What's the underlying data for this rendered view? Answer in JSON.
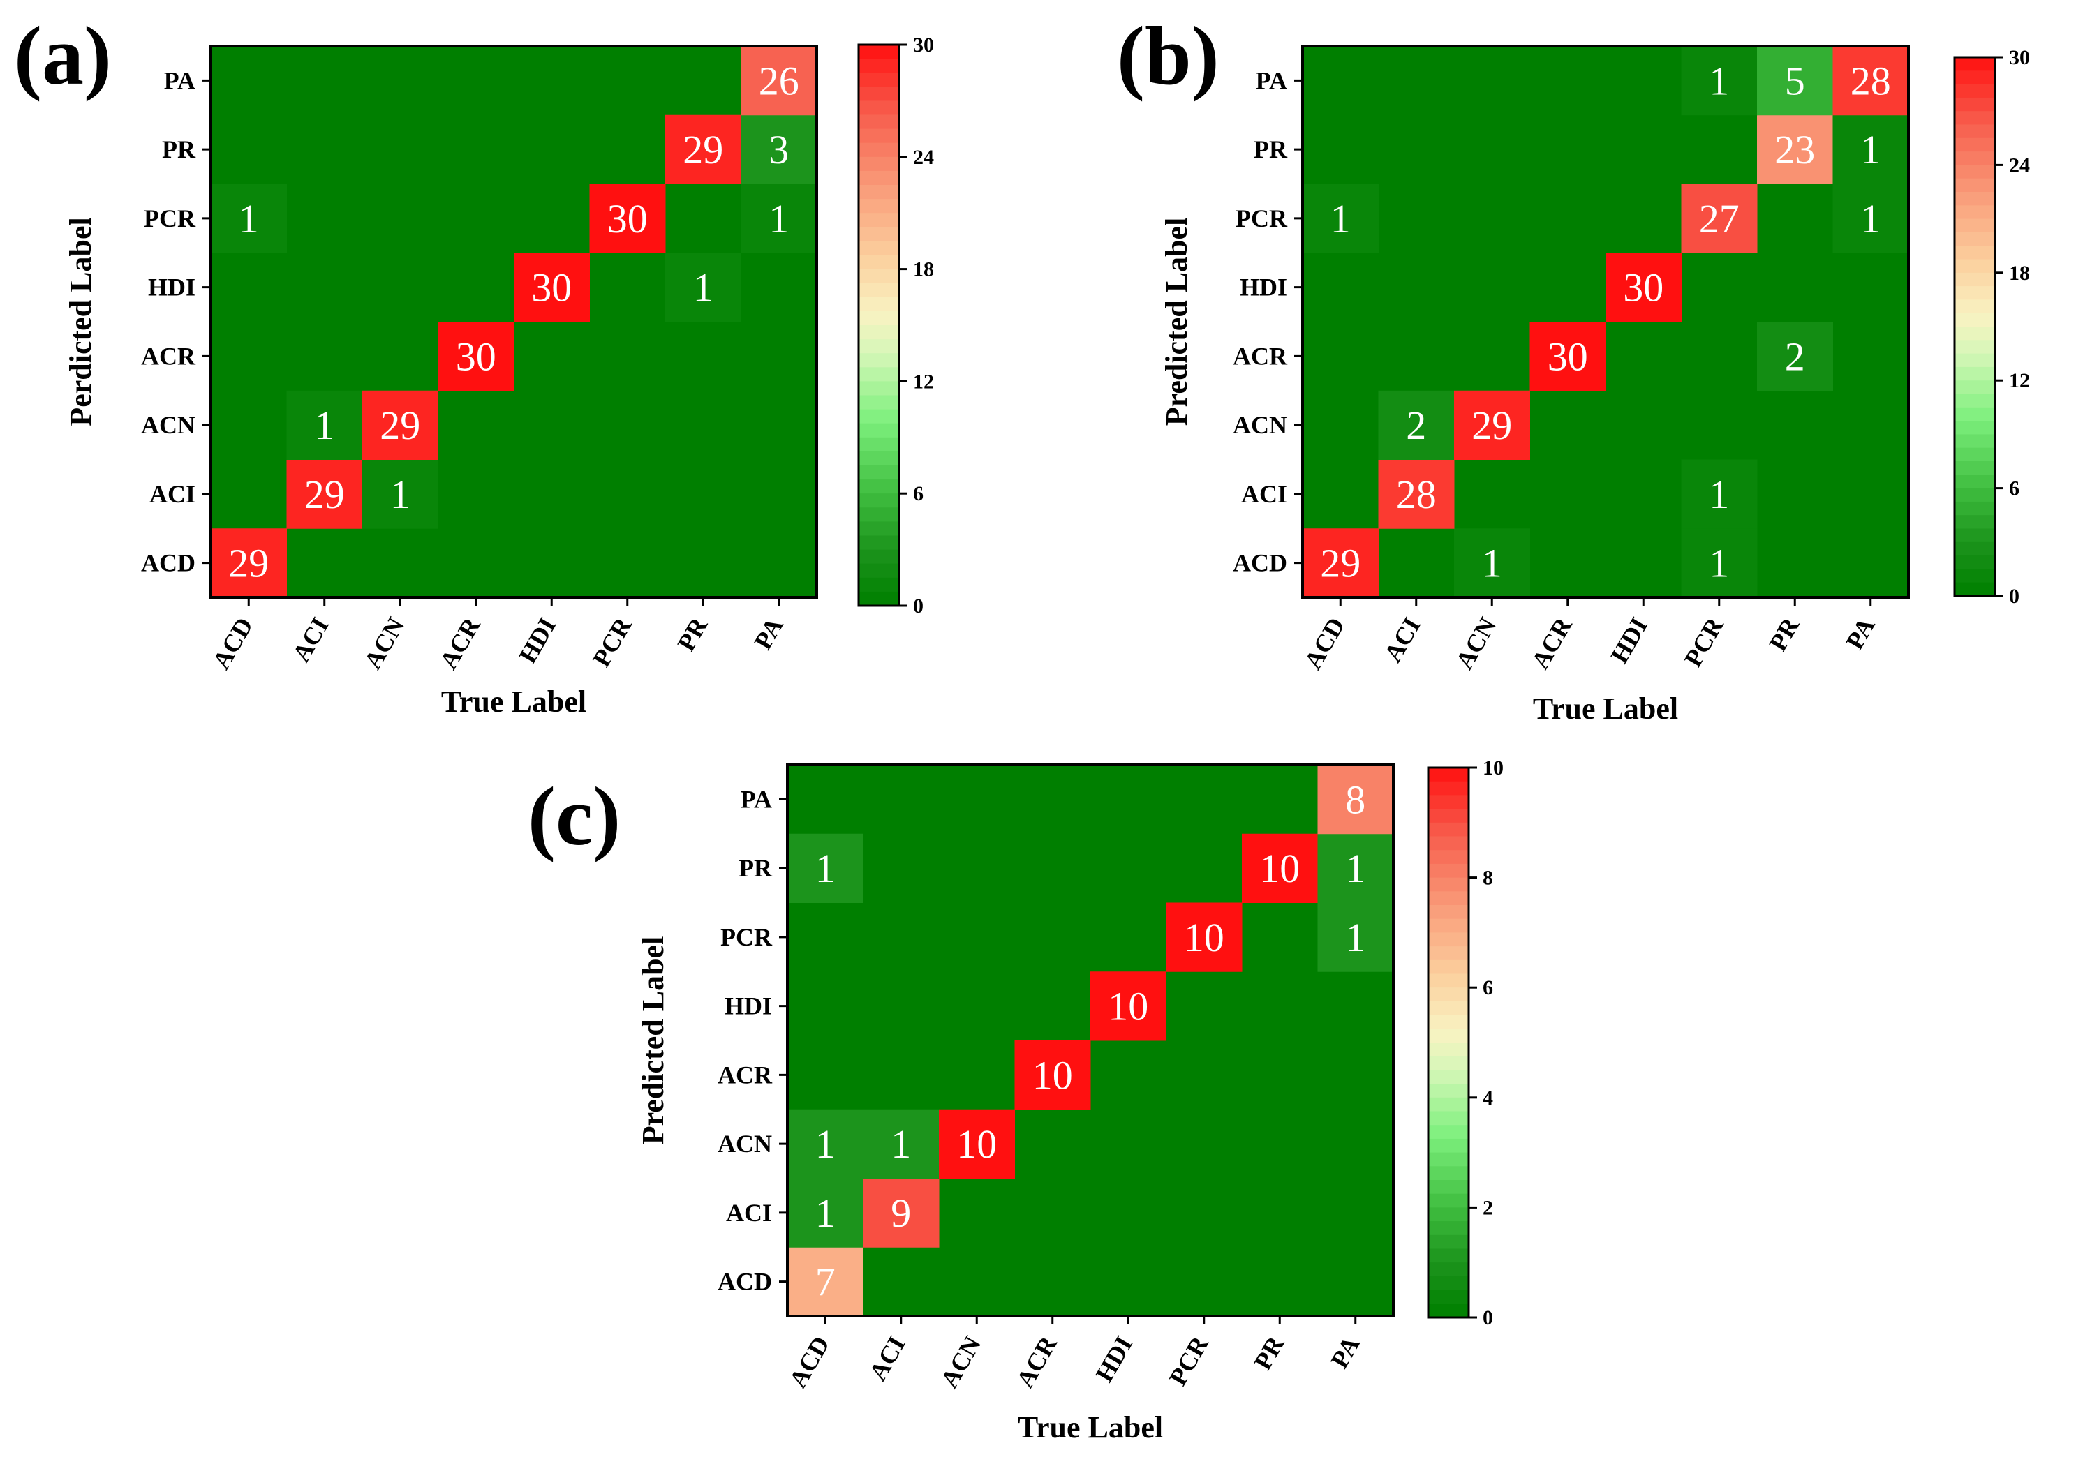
{
  "chart_data": [
    {
      "type": "heatmap",
      "panel_label": "(a)",
      "categories": [
        "ACD",
        "ACI",
        "ACN",
        "ACR",
        "HDI",
        "PCR",
        "PR",
        "PA"
      ],
      "xlabel": "True Label",
      "ylabel": "Perdicted Label",
      "colorbar": {
        "min": 0,
        "max": 30,
        "ticks": [
          "30",
          "24",
          "18",
          "12",
          "6",
          "0"
        ]
      },
      "cells": [
        {
          "x": "ACD",
          "y": "ACD",
          "value": 29,
          "label": "29"
        },
        {
          "x": "ACI",
          "y": "ACI",
          "value": 29,
          "label": "29"
        },
        {
          "x": "ACN",
          "y": "ACI",
          "value": 1,
          "label": "1"
        },
        {
          "x": "ACI",
          "y": "ACN",
          "value": 1,
          "label": "1"
        },
        {
          "x": "ACN",
          "y": "ACN",
          "value": 29,
          "label": "29"
        },
        {
          "x": "ACR",
          "y": "ACR",
          "value": 30,
          "label": "30"
        },
        {
          "x": "HDI",
          "y": "HDI",
          "value": 30,
          "label": "30"
        },
        {
          "x": "PR",
          "y": "HDI",
          "value": 1,
          "label": "1"
        },
        {
          "x": "ACD",
          "y": "PCR",
          "value": 1,
          "label": "1"
        },
        {
          "x": "PCR",
          "y": "PCR",
          "value": 30,
          "label": "30"
        },
        {
          "x": "PA",
          "y": "PCR",
          "value": 1,
          "label": "1"
        },
        {
          "x": "PR",
          "y": "PR",
          "value": 29,
          "label": "29"
        },
        {
          "x": "PA",
          "y": "PR",
          "value": 3,
          "label": "3"
        },
        {
          "x": "PA",
          "y": "PA",
          "value": 26,
          "label": "26"
        }
      ]
    },
    {
      "type": "heatmap",
      "panel_label": "(b)",
      "categories": [
        "ACD",
        "ACI",
        "ACN",
        "ACR",
        "HDI",
        "PCR",
        "PR",
        "PA"
      ],
      "xlabel": "True Label",
      "ylabel": "Predicted Label",
      "colorbar": {
        "min": 0,
        "max": 30,
        "ticks": [
          "30",
          "24",
          "18",
          "12",
          "6",
          "0"
        ]
      },
      "cells": [
        {
          "x": "ACD",
          "y": "ACD",
          "value": 29,
          "label": "29"
        },
        {
          "x": "ACN",
          "y": "ACD",
          "value": 1,
          "label": "1"
        },
        {
          "x": "PCR",
          "y": "ACD",
          "value": 1,
          "label": "1"
        },
        {
          "x": "ACI",
          "y": "ACI",
          "value": 28,
          "label": "28"
        },
        {
          "x": "PCR",
          "y": "ACI",
          "value": 1,
          "label": "1"
        },
        {
          "x": "ACI",
          "y": "ACN",
          "value": 2,
          "label": "2"
        },
        {
          "x": "ACN",
          "y": "ACN",
          "value": 29,
          "label": "29"
        },
        {
          "x": "ACR",
          "y": "ACR",
          "value": 30,
          "label": "30"
        },
        {
          "x": "PR",
          "y": "ACR",
          "value": 2,
          "label": "2"
        },
        {
          "x": "HDI",
          "y": "HDI",
          "value": 30,
          "label": "30"
        },
        {
          "x": "ACD",
          "y": "PCR",
          "value": 1,
          "label": "1"
        },
        {
          "x": "PCR",
          "y": "PCR",
          "value": 27,
          "label": "27"
        },
        {
          "x": "PA",
          "y": "PCR",
          "value": 1,
          "label": "1"
        },
        {
          "x": "PR",
          "y": "PR",
          "value": 23,
          "label": "23"
        },
        {
          "x": "PA",
          "y": "PR",
          "value": 1,
          "label": "1"
        },
        {
          "x": "PCR",
          "y": "PA",
          "value": 1,
          "label": "1"
        },
        {
          "x": "PR",
          "y": "PA",
          "value": 5,
          "label": "5"
        },
        {
          "x": "PA",
          "y": "PA",
          "value": 28,
          "label": "28"
        }
      ]
    },
    {
      "type": "heatmap",
      "panel_label": "(c)",
      "categories": [
        "ACD",
        "ACI",
        "ACN",
        "ACR",
        "HDI",
        "PCR",
        "PR",
        "PA"
      ],
      "xlabel": "True Label",
      "ylabel": "Predicted Label",
      "colorbar": {
        "min": 0,
        "max": 10,
        "ticks": [
          "10",
          "8",
          "6",
          "4",
          "2",
          "0"
        ]
      },
      "cells": [
        {
          "x": "ACD",
          "y": "ACD",
          "value": 7,
          "label": "7"
        },
        {
          "x": "ACD",
          "y": "ACI",
          "value": 1,
          "label": "1"
        },
        {
          "x": "ACI",
          "y": "ACI",
          "value": 9,
          "label": "9"
        },
        {
          "x": "ACD",
          "y": "ACN",
          "value": 1,
          "label": "1"
        },
        {
          "x": "ACI",
          "y": "ACN",
          "value": 1,
          "label": "1"
        },
        {
          "x": "ACN",
          "y": "ACN",
          "value": 10,
          "label": "10"
        },
        {
          "x": "ACR",
          "y": "ACR",
          "value": 10,
          "label": "10"
        },
        {
          "x": "HDI",
          "y": "HDI",
          "value": 10,
          "label": "10"
        },
        {
          "x": "PCR",
          "y": "PCR",
          "value": 10,
          "label": "10"
        },
        {
          "x": "PA",
          "y": "PCR",
          "value": 1,
          "label": "1"
        },
        {
          "x": "ACD",
          "y": "PR",
          "value": 1,
          "label": "1"
        },
        {
          "x": "PR",
          "y": "PR",
          "value": 10,
          "label": "10"
        },
        {
          "x": "PA",
          "y": "PR",
          "value": 1,
          "label": "1"
        },
        {
          "x": "PA",
          "y": "PA",
          "value": 8,
          "label": "8"
        }
      ]
    }
  ]
}
